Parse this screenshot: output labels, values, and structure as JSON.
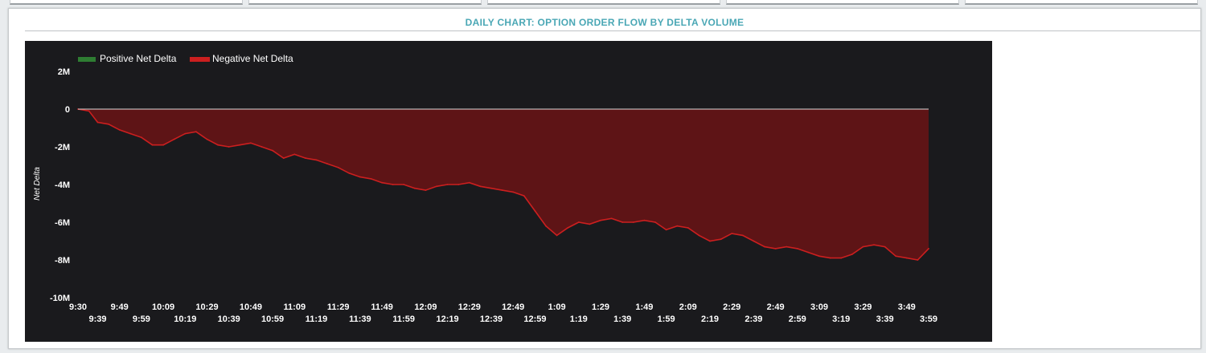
{
  "page": {
    "title": "DAILY CHART: OPTION ORDER FLOW BY DELTA VOLUME"
  },
  "colors": {
    "positive": "#2e7d32",
    "negative_line": "#cc1f1f",
    "negative_fill": "#5e1416",
    "background": "#1a1a1d",
    "zero_line": "#d9d9d9"
  },
  "chart_data": {
    "type": "area",
    "title": "DAILY CHART: OPTION ORDER FLOW BY DELTA VOLUME",
    "ylabel": "Net Delta",
    "xlabel": "",
    "ylim": [
      -10000000,
      2000000
    ],
    "y_ticks": [
      {
        "value": 2000000,
        "label": "2M"
      },
      {
        "value": 0,
        "label": "0"
      },
      {
        "value": -2000000,
        "label": "-2M"
      },
      {
        "value": -4000000,
        "label": "-4M"
      },
      {
        "value": -6000000,
        "label": "-6M"
      },
      {
        "value": -8000000,
        "label": "-8M"
      },
      {
        "value": -10000000,
        "label": "-10M"
      }
    ],
    "x_ticks": [
      "9:30",
      "9:39",
      "9:49",
      "9:59",
      "10:09",
      "10:19",
      "10:29",
      "10:39",
      "10:49",
      "10:59",
      "11:09",
      "11:19",
      "11:29",
      "11:39",
      "11:49",
      "11:59",
      "12:09",
      "12:19",
      "12:29",
      "12:39",
      "12:49",
      "12:59",
      "1:09",
      "1:19",
      "1:29",
      "1:39",
      "1:49",
      "1:59",
      "2:09",
      "2:19",
      "2:29",
      "2:39",
      "2:49",
      "2:59",
      "3:09",
      "3:19",
      "3:29",
      "3:39",
      "3:49",
      "3:59"
    ],
    "legend": [
      "Positive Net Delta",
      "Negative Net Delta"
    ],
    "legend_position": "top-left",
    "grid": false,
    "series": [
      {
        "name": "Negative Net Delta",
        "x": [
          "9:30",
          "9:35",
          "9:39",
          "9:44",
          "9:49",
          "9:54",
          "9:59",
          "10:04",
          "10:09",
          "10:14",
          "10:19",
          "10:24",
          "10:29",
          "10:34",
          "10:39",
          "10:44",
          "10:49",
          "10:54",
          "10:59",
          "11:04",
          "11:09",
          "11:14",
          "11:19",
          "11:24",
          "11:29",
          "11:34",
          "11:39",
          "11:44",
          "11:49",
          "11:54",
          "11:59",
          "12:04",
          "12:09",
          "12:14",
          "12:19",
          "12:24",
          "12:29",
          "12:34",
          "12:39",
          "12:44",
          "12:49",
          "12:54",
          "12:59",
          "1:04",
          "1:09",
          "1:14",
          "1:19",
          "1:24",
          "1:29",
          "1:34",
          "1:39",
          "1:44",
          "1:49",
          "1:54",
          "1:59",
          "2:04",
          "2:09",
          "2:14",
          "2:19",
          "2:24",
          "2:29",
          "2:34",
          "2:39",
          "2:44",
          "2:49",
          "2:54",
          "2:59",
          "3:04",
          "3:09",
          "3:14",
          "3:19",
          "3:24",
          "3:29",
          "3:34",
          "3:39",
          "3:44",
          "3:49",
          "3:54",
          "3:59"
        ],
        "values": [
          0,
          -100000,
          -700000,
          -800000,
          -1100000,
          -1300000,
          -1500000,
          -1900000,
          -1900000,
          -1600000,
          -1300000,
          -1200000,
          -1600000,
          -1900000,
          -2000000,
          -1900000,
          -1800000,
          -2000000,
          -2200000,
          -2600000,
          -2400000,
          -2600000,
          -2700000,
          -2900000,
          -3100000,
          -3400000,
          -3600000,
          -3700000,
          -3900000,
          -4000000,
          -4000000,
          -4200000,
          -4300000,
          -4100000,
          -4000000,
          -4000000,
          -3900000,
          -4100000,
          -4200000,
          -4300000,
          -4400000,
          -4600000,
          -5400000,
          -6200000,
          -6700000,
          -6300000,
          -6000000,
          -6100000,
          -5900000,
          -5800000,
          -6000000,
          -6000000,
          -5900000,
          -6000000,
          -6400000,
          -6200000,
          -6300000,
          -6700000,
          -7000000,
          -6900000,
          -6600000,
          -6700000,
          -7000000,
          -7300000,
          -7400000,
          -7300000,
          -7400000,
          -7600000,
          -7800000,
          -7900000,
          -7900000,
          -7700000,
          -7300000,
          -7200000,
          -7300000,
          -7800000,
          -7900000,
          -8000000,
          -7400000
        ]
      }
    ]
  }
}
